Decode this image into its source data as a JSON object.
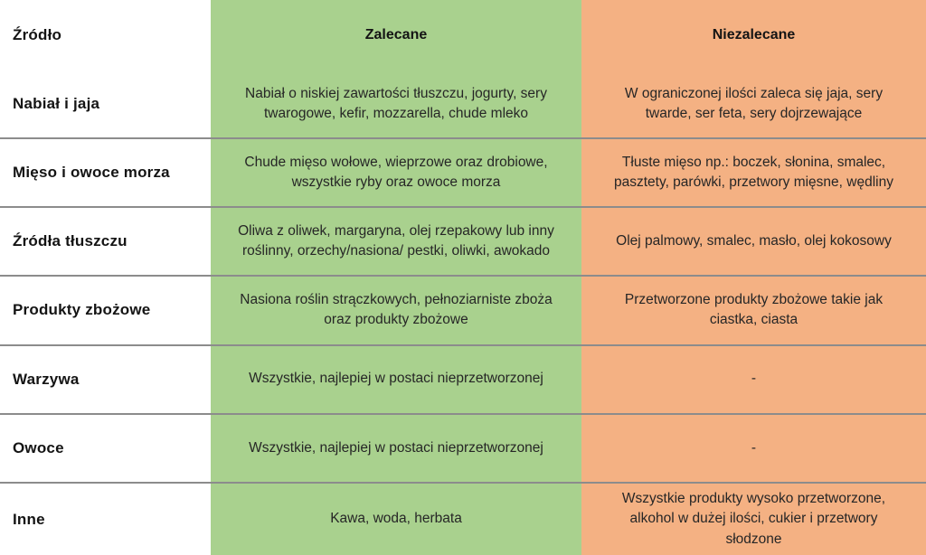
{
  "table": {
    "header": {
      "source": "Źródło",
      "recommended": "Zalecane",
      "not_recommended": "Niezalecane"
    },
    "rows": [
      {
        "source": "Nabiał i jaja",
        "recommended": "Nabiał o niskiej zawartości tłuszczu, jogurty, sery twarogowe, kefir, mozzarella, chude mleko",
        "not_recommended": "W ograniczonej ilości zaleca się jaja, sery twarde, ser feta, sery dojrzewające"
      },
      {
        "source": "Mięso i owoce morza",
        "recommended": "Chude mięso wołowe, wieprzowe oraz drobiowe, wszystkie ryby oraz owoce morza",
        "not_recommended": "Tłuste mięso np.: boczek, słonina, smalec, pasztety, parówki, przetwory mięsne, wędliny"
      },
      {
        "source": "Źródła tłuszczu",
        "recommended": "Oliwa z oliwek, margaryna, olej rzepakowy lub inny roślinny, orzechy/nasiona/ pestki, oliwki, awokado",
        "not_recommended": "Olej palmowy, smalec, masło, olej kokosowy"
      },
      {
        "source": "Produkty zbożowe",
        "recommended": "Nasiona roślin strączkowych, pełnoziarniste zboża oraz produkty zbożowe",
        "not_recommended": "Przetworzone produkty zbożowe takie jak ciastka, ciasta"
      },
      {
        "source": "Warzywa",
        "recommended": "Wszystkie, najlepiej w postaci nieprzetworzonej",
        "not_recommended": "-"
      },
      {
        "source": "Owoce",
        "recommended": "Wszystkie, najlepiej w postaci nieprzetworzonej",
        "not_recommended": "-"
      },
      {
        "source": "Inne",
        "recommended": "Kawa, woda, herbata",
        "not_recommended": "Wszystkie produkty wysoko przetworzone, alkohol w dużej ilości, cukier i przetwory słodzone"
      }
    ]
  },
  "colors": {
    "recommended_bg": "#a9d18e",
    "not_recommended_bg": "#f4b183",
    "source_bg": "#ffffff",
    "divider": "#00000073",
    "heading_text": "#141414",
    "body_text": "#262626"
  }
}
